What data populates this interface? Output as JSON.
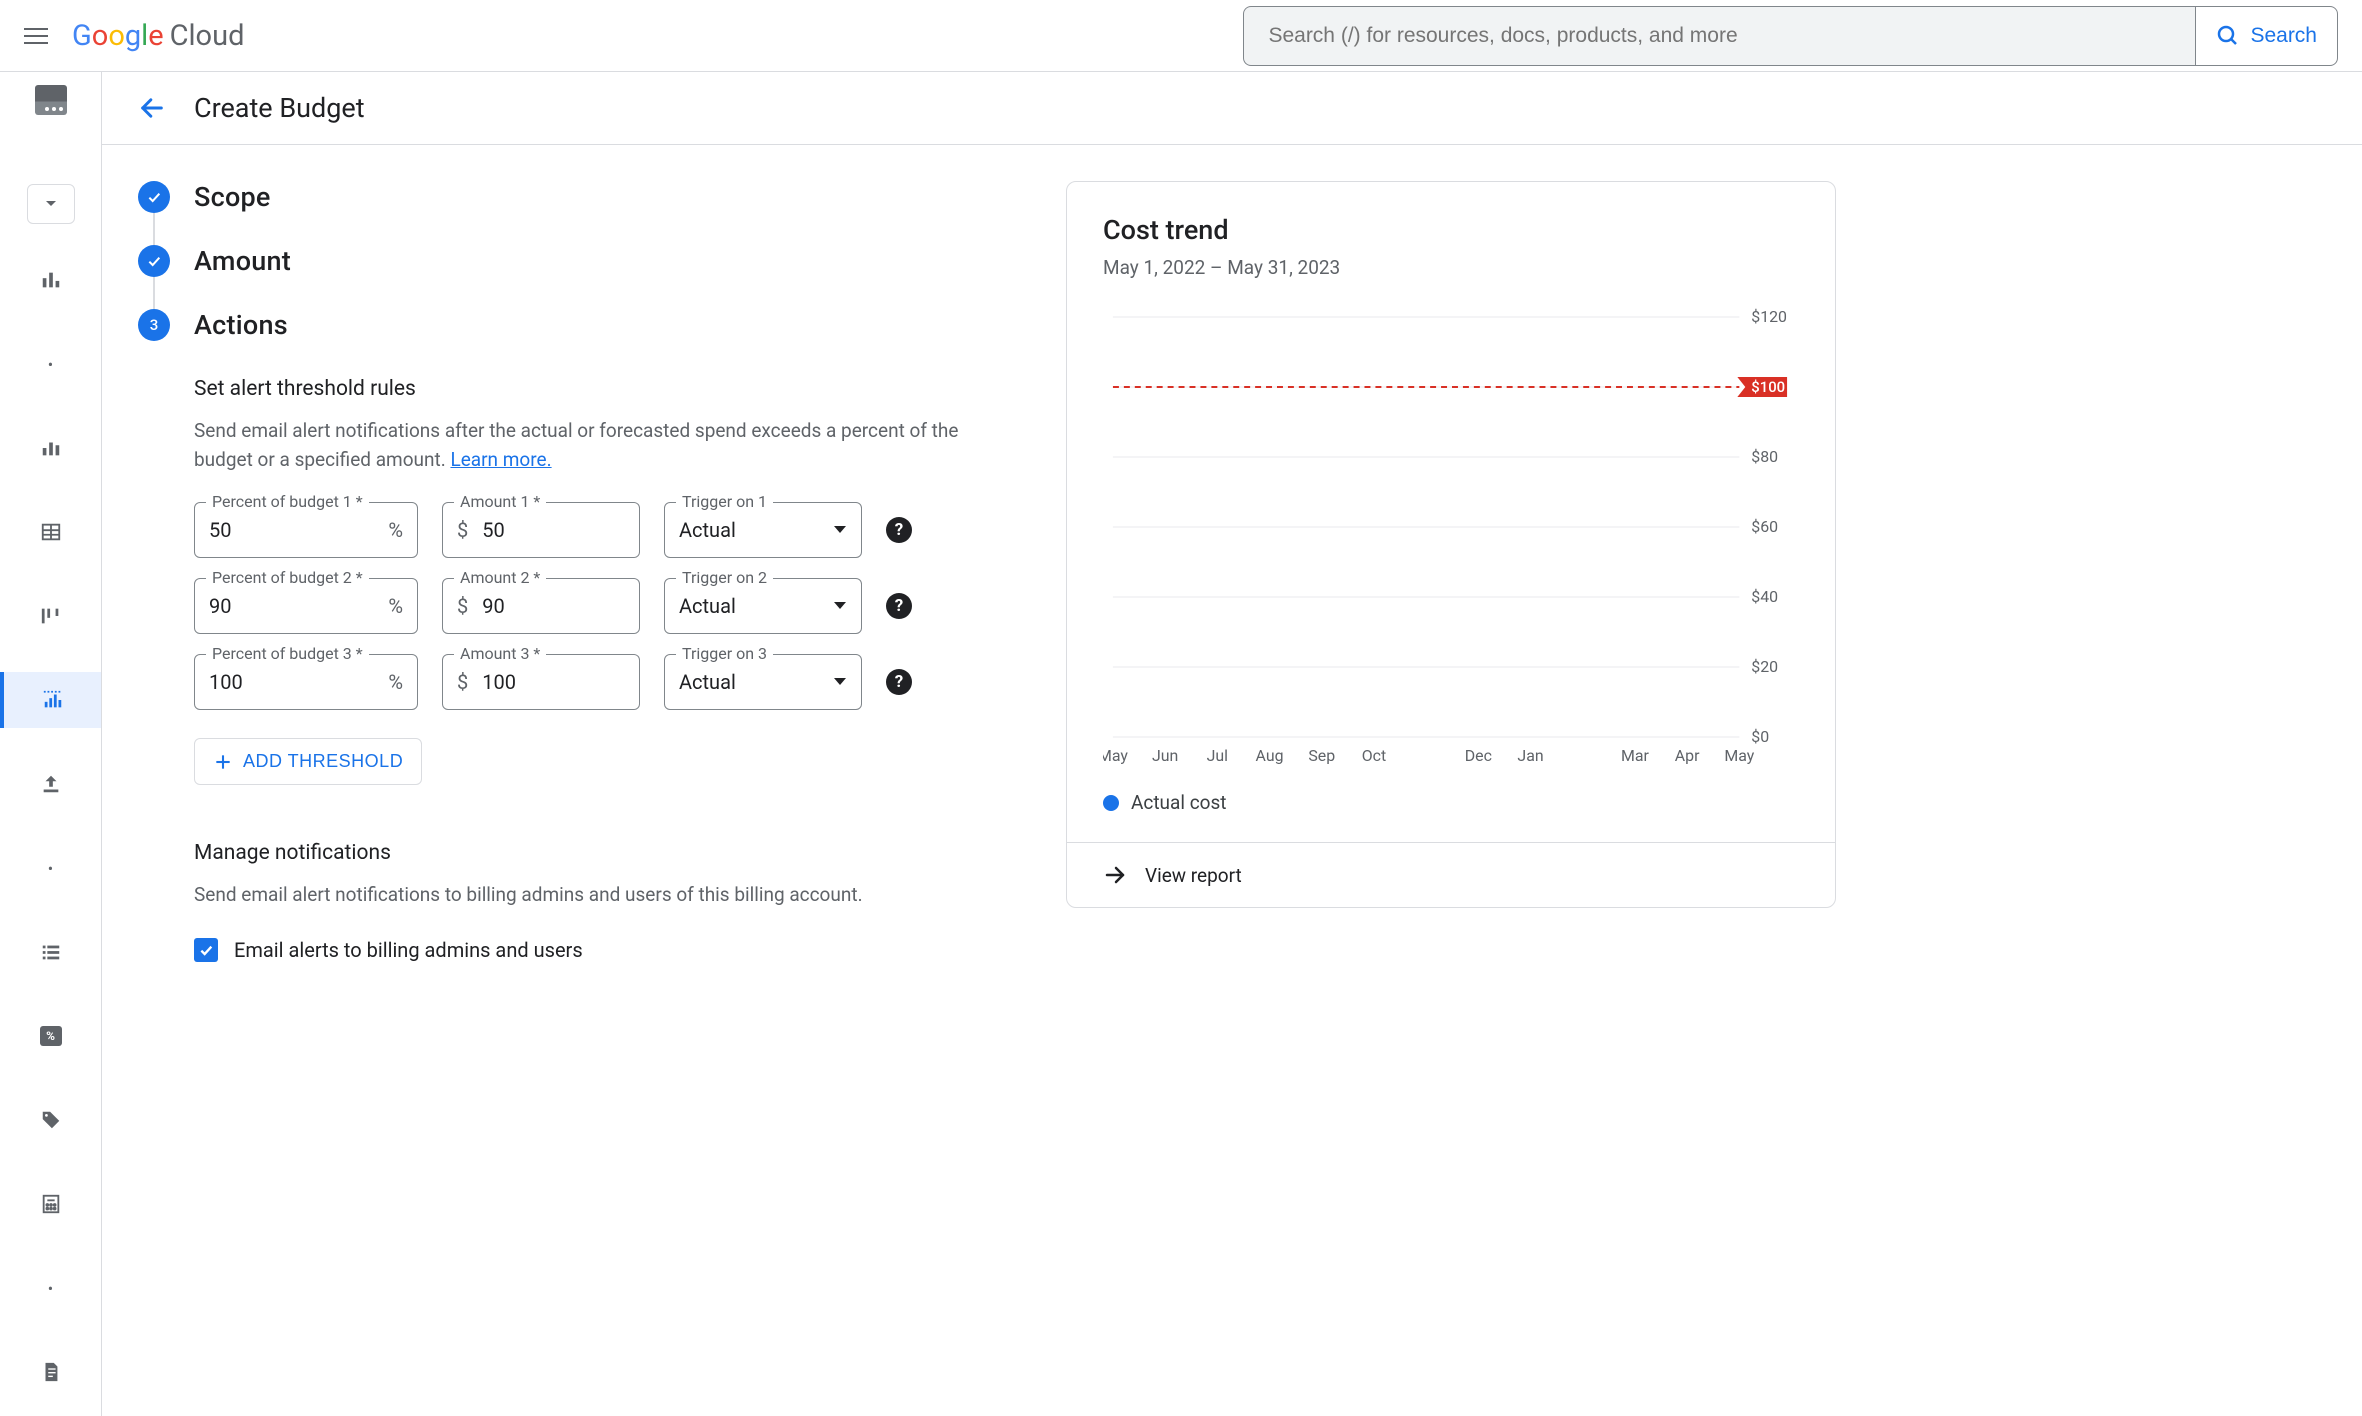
{
  "header": {
    "logo_cloud": "Cloud",
    "search_placeholder": "Search (/) for resources, docs, products, and more",
    "search_button": "Search"
  },
  "page": {
    "title": "Create Budget"
  },
  "stepper": {
    "steps": [
      {
        "label": "Scope",
        "state": "done"
      },
      {
        "label": "Amount",
        "state": "done"
      },
      {
        "label": "Actions",
        "state": "current",
        "number": "3"
      }
    ]
  },
  "thresholds": {
    "section_title": "Set alert threshold rules",
    "description": "Send email alert notifications after the actual or forecasted spend exceeds a percent of the budget or a specified amount. ",
    "learn_more": "Learn more.",
    "percent_label_prefix": "Percent of budget ",
    "amount_label_prefix": "Amount ",
    "trigger_label_prefix": "Trigger on ",
    "required_suffix": " *",
    "rows": [
      {
        "n": "1",
        "percent": "50",
        "amount": "50",
        "trigger": "Actual"
      },
      {
        "n": "2",
        "percent": "90",
        "amount": "90",
        "trigger": "Actual"
      },
      {
        "n": "3",
        "percent": "100",
        "amount": "100",
        "trigger": "Actual"
      }
    ],
    "add_button": "ADD THRESHOLD"
  },
  "notifications": {
    "section_title": "Manage notifications",
    "description": "Send email alert notifications to billing admins and users of this billing account.",
    "checkbox_label": "Email alerts to billing admins and users",
    "checkbox_checked": true
  },
  "chart": {
    "title": "Cost trend",
    "subtitle": "May 1, 2022 – May 31, 2023",
    "y_axis": {
      "min": 0,
      "max": 120,
      "ticks": [
        0,
        20,
        40,
        60,
        80,
        100,
        120
      ],
      "prefix": "$"
    },
    "x_labels": [
      "May",
      "Jun",
      "Jul",
      "Aug",
      "Sep",
      "Oct",
      "",
      "Dec",
      "Jan",
      "",
      "Mar",
      "Apr",
      "May"
    ],
    "budget_line": {
      "value": 100,
      "label": "$100",
      "color": "#d93025"
    },
    "grid_color": "#e8eaed",
    "legend_label": "Actual cost",
    "legend_color": "#1a73e8",
    "view_report": "View report"
  }
}
